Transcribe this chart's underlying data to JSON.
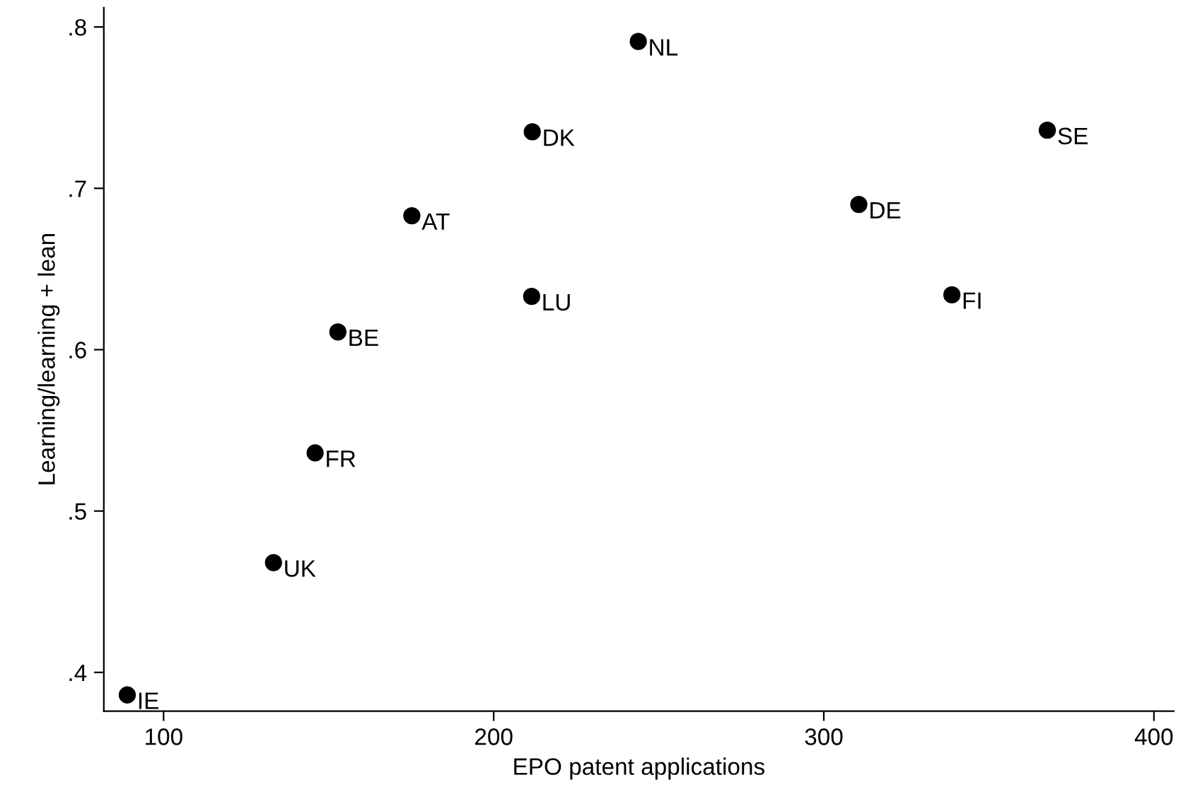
{
  "chart_data": {
    "type": "scatter",
    "xlabel": "EPO patent applications",
    "ylabel": "Learning/learning + lean",
    "x": [
      243.8,
      211.7,
      367.7,
      175.2,
      310.6,
      211.5,
      338.8,
      152.8,
      145.9,
      133.3,
      89.0
    ],
    "series": [
      {
        "color": "#000000",
        "values": [
          0.791,
          0.735,
          0.736,
          0.683,
          0.69,
          0.633,
          0.634,
          0.611,
          0.536,
          0.468,
          0.386
        ]
      }
    ],
    "annotations": [
      {
        "text": "NL",
        "x": 243.8,
        "y": 0.791
      },
      {
        "text": "DK",
        "x": 211.7,
        "y": 0.735
      },
      {
        "text": "SE",
        "x": 367.7,
        "y": 0.736
      },
      {
        "text": "AT",
        "x": 175.2,
        "y": 0.683
      },
      {
        "text": "DE",
        "x": 310.6,
        "y": 0.69
      },
      {
        "text": "LU",
        "x": 211.5,
        "y": 0.633
      },
      {
        "text": "FI",
        "x": 338.8,
        "y": 0.634
      },
      {
        "text": "BE",
        "x": 152.8,
        "y": 0.611
      },
      {
        "text": "FR",
        "x": 145.9,
        "y": 0.536
      },
      {
        "text": "UK",
        "x": 133.3,
        "y": 0.468
      },
      {
        "text": "IE",
        "x": 89.0,
        "y": 0.386
      }
    ],
    "xlim": [
      81.9,
      406
    ],
    "xticks": [
      100,
      200,
      300,
      400
    ],
    "ylim": [
      0.376,
      0.812
    ],
    "yticks": [
      {
        "value": 0.4,
        "label": ".4"
      },
      {
        "value": 0.5,
        "label": ".5"
      },
      {
        "value": 0.6,
        "label": ".6"
      },
      {
        "value": 0.7,
        "label": ".7"
      },
      {
        "value": 0.8,
        "label": ".8"
      }
    ],
    "marker": "circle",
    "grid": false,
    "legend": false
  }
}
